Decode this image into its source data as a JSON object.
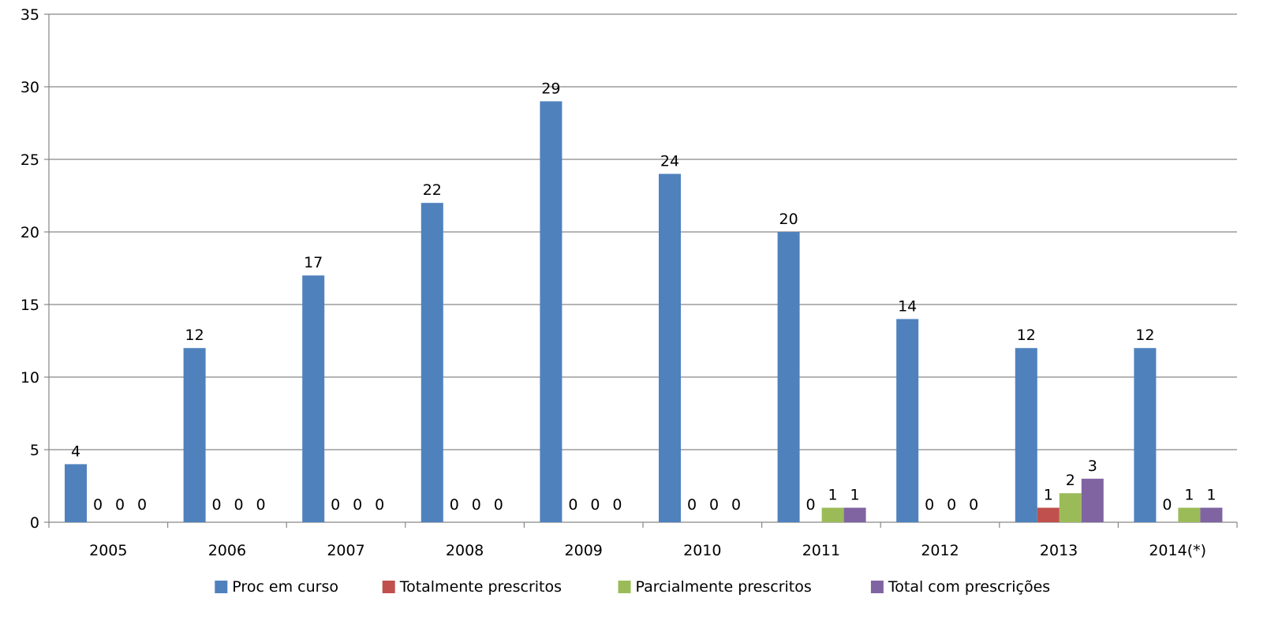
{
  "chart_data": {
    "type": "bar",
    "categories": [
      "2005",
      "2006",
      "2007",
      "2008",
      "2009",
      "2010",
      "2011",
      "2012",
      "2013",
      "2014(*)"
    ],
    "series": [
      {
        "name": "Proc em curso",
        "color": "#4F81BD",
        "values": [
          4,
          12,
          17,
          22,
          29,
          24,
          20,
          14,
          12,
          12
        ]
      },
      {
        "name": "Totalmente prescritos",
        "color": "#C0504D",
        "values": [
          0,
          0,
          0,
          0,
          0,
          0,
          0,
          0,
          1,
          0
        ]
      },
      {
        "name": "Parcialmente prescritos",
        "color": "#9BBB59",
        "values": [
          0,
          0,
          0,
          0,
          0,
          0,
          1,
          0,
          2,
          1
        ]
      },
      {
        "name": "Total com prescrições",
        "color": "#8064A2",
        "values": [
          0,
          0,
          0,
          0,
          0,
          0,
          1,
          0,
          3,
          1
        ]
      }
    ],
    "data_labels_shown": [
      [
        true,
        true,
        true,
        true,
        true,
        true,
        true,
        true,
        true,
        true
      ],
      [
        true,
        true,
        true,
        true,
        true,
        true,
        true,
        true,
        true,
        true
      ],
      [
        true,
        true,
        true,
        true,
        true,
        true,
        true,
        true,
        true,
        true
      ],
      [
        true,
        true,
        true,
        true,
        true,
        true,
        true,
        true,
        true,
        true
      ]
    ],
    "ylim": [
      0,
      35
    ],
    "yticks": [
      0,
      5,
      10,
      15,
      20,
      25,
      30,
      35
    ],
    "grid": true,
    "legend_position": "bottom",
    "title": "",
    "xlabel": "",
    "ylabel": ""
  }
}
